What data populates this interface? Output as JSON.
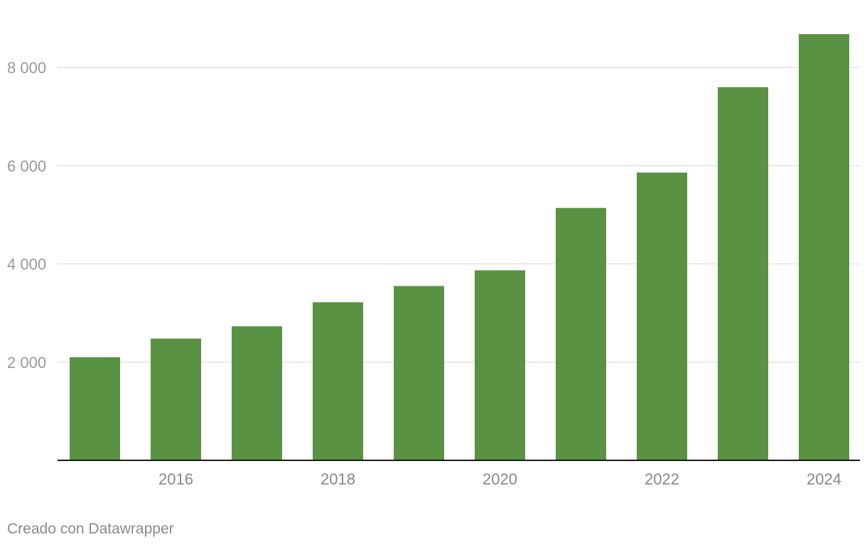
{
  "chart_data": {
    "type": "bar",
    "categories": [
      "2015",
      "2016",
      "2017",
      "2018",
      "2019",
      "2020",
      "2021",
      "2022",
      "2023",
      "2024"
    ],
    "values": [
      2100,
      2480,
      2730,
      3220,
      3550,
      3870,
      5140,
      5860,
      7600,
      8680
    ],
    "ylim": [
      0,
      8800
    ],
    "yticks": [
      2000,
      4000,
      6000,
      8000
    ],
    "ytick_labels": [
      "2 000",
      "4 000",
      "6 000",
      "8 000"
    ],
    "xtick_labels_shown": [
      "2016",
      "2018",
      "2020",
      "2022",
      "2024"
    ],
    "bar_color": "#5a9243",
    "grid": true,
    "title": "",
    "xlabel": "",
    "ylabel": ""
  },
  "footer": {
    "credit": "Creado con Datawrapper"
  }
}
